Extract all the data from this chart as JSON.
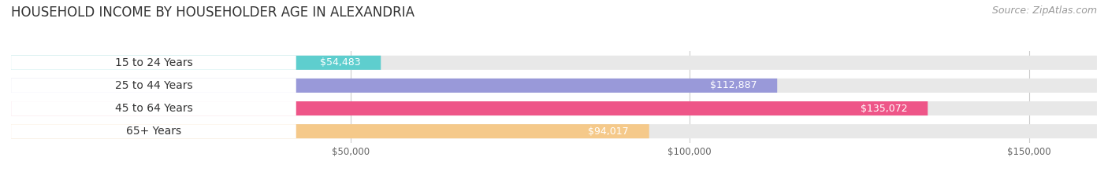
{
  "title": "HOUSEHOLD INCOME BY HOUSEHOLDER AGE IN ALEXANDRIA",
  "source": "Source: ZipAtlas.com",
  "categories": [
    "15 to 24 Years",
    "25 to 44 Years",
    "45 to 64 Years",
    "65+ Years"
  ],
  "values": [
    54483,
    112887,
    135072,
    94017
  ],
  "bar_colors": [
    "#5ecece",
    "#9999d9",
    "#ee5588",
    "#f5c98a"
  ],
  "bg_bar_color": "#e8e8e8",
  "label_bg_color": "#ffffff",
  "value_labels": [
    "$54,483",
    "$112,887",
    "$135,072",
    "$94,017"
  ],
  "xmax": 160000,
  "xticks": [
    50000,
    100000,
    150000
  ],
  "xtick_labels": [
    "$50,000",
    "$100,000",
    "$150,000"
  ],
  "title_fontsize": 12,
  "source_fontsize": 9,
  "label_fontsize": 10,
  "value_fontsize": 9
}
